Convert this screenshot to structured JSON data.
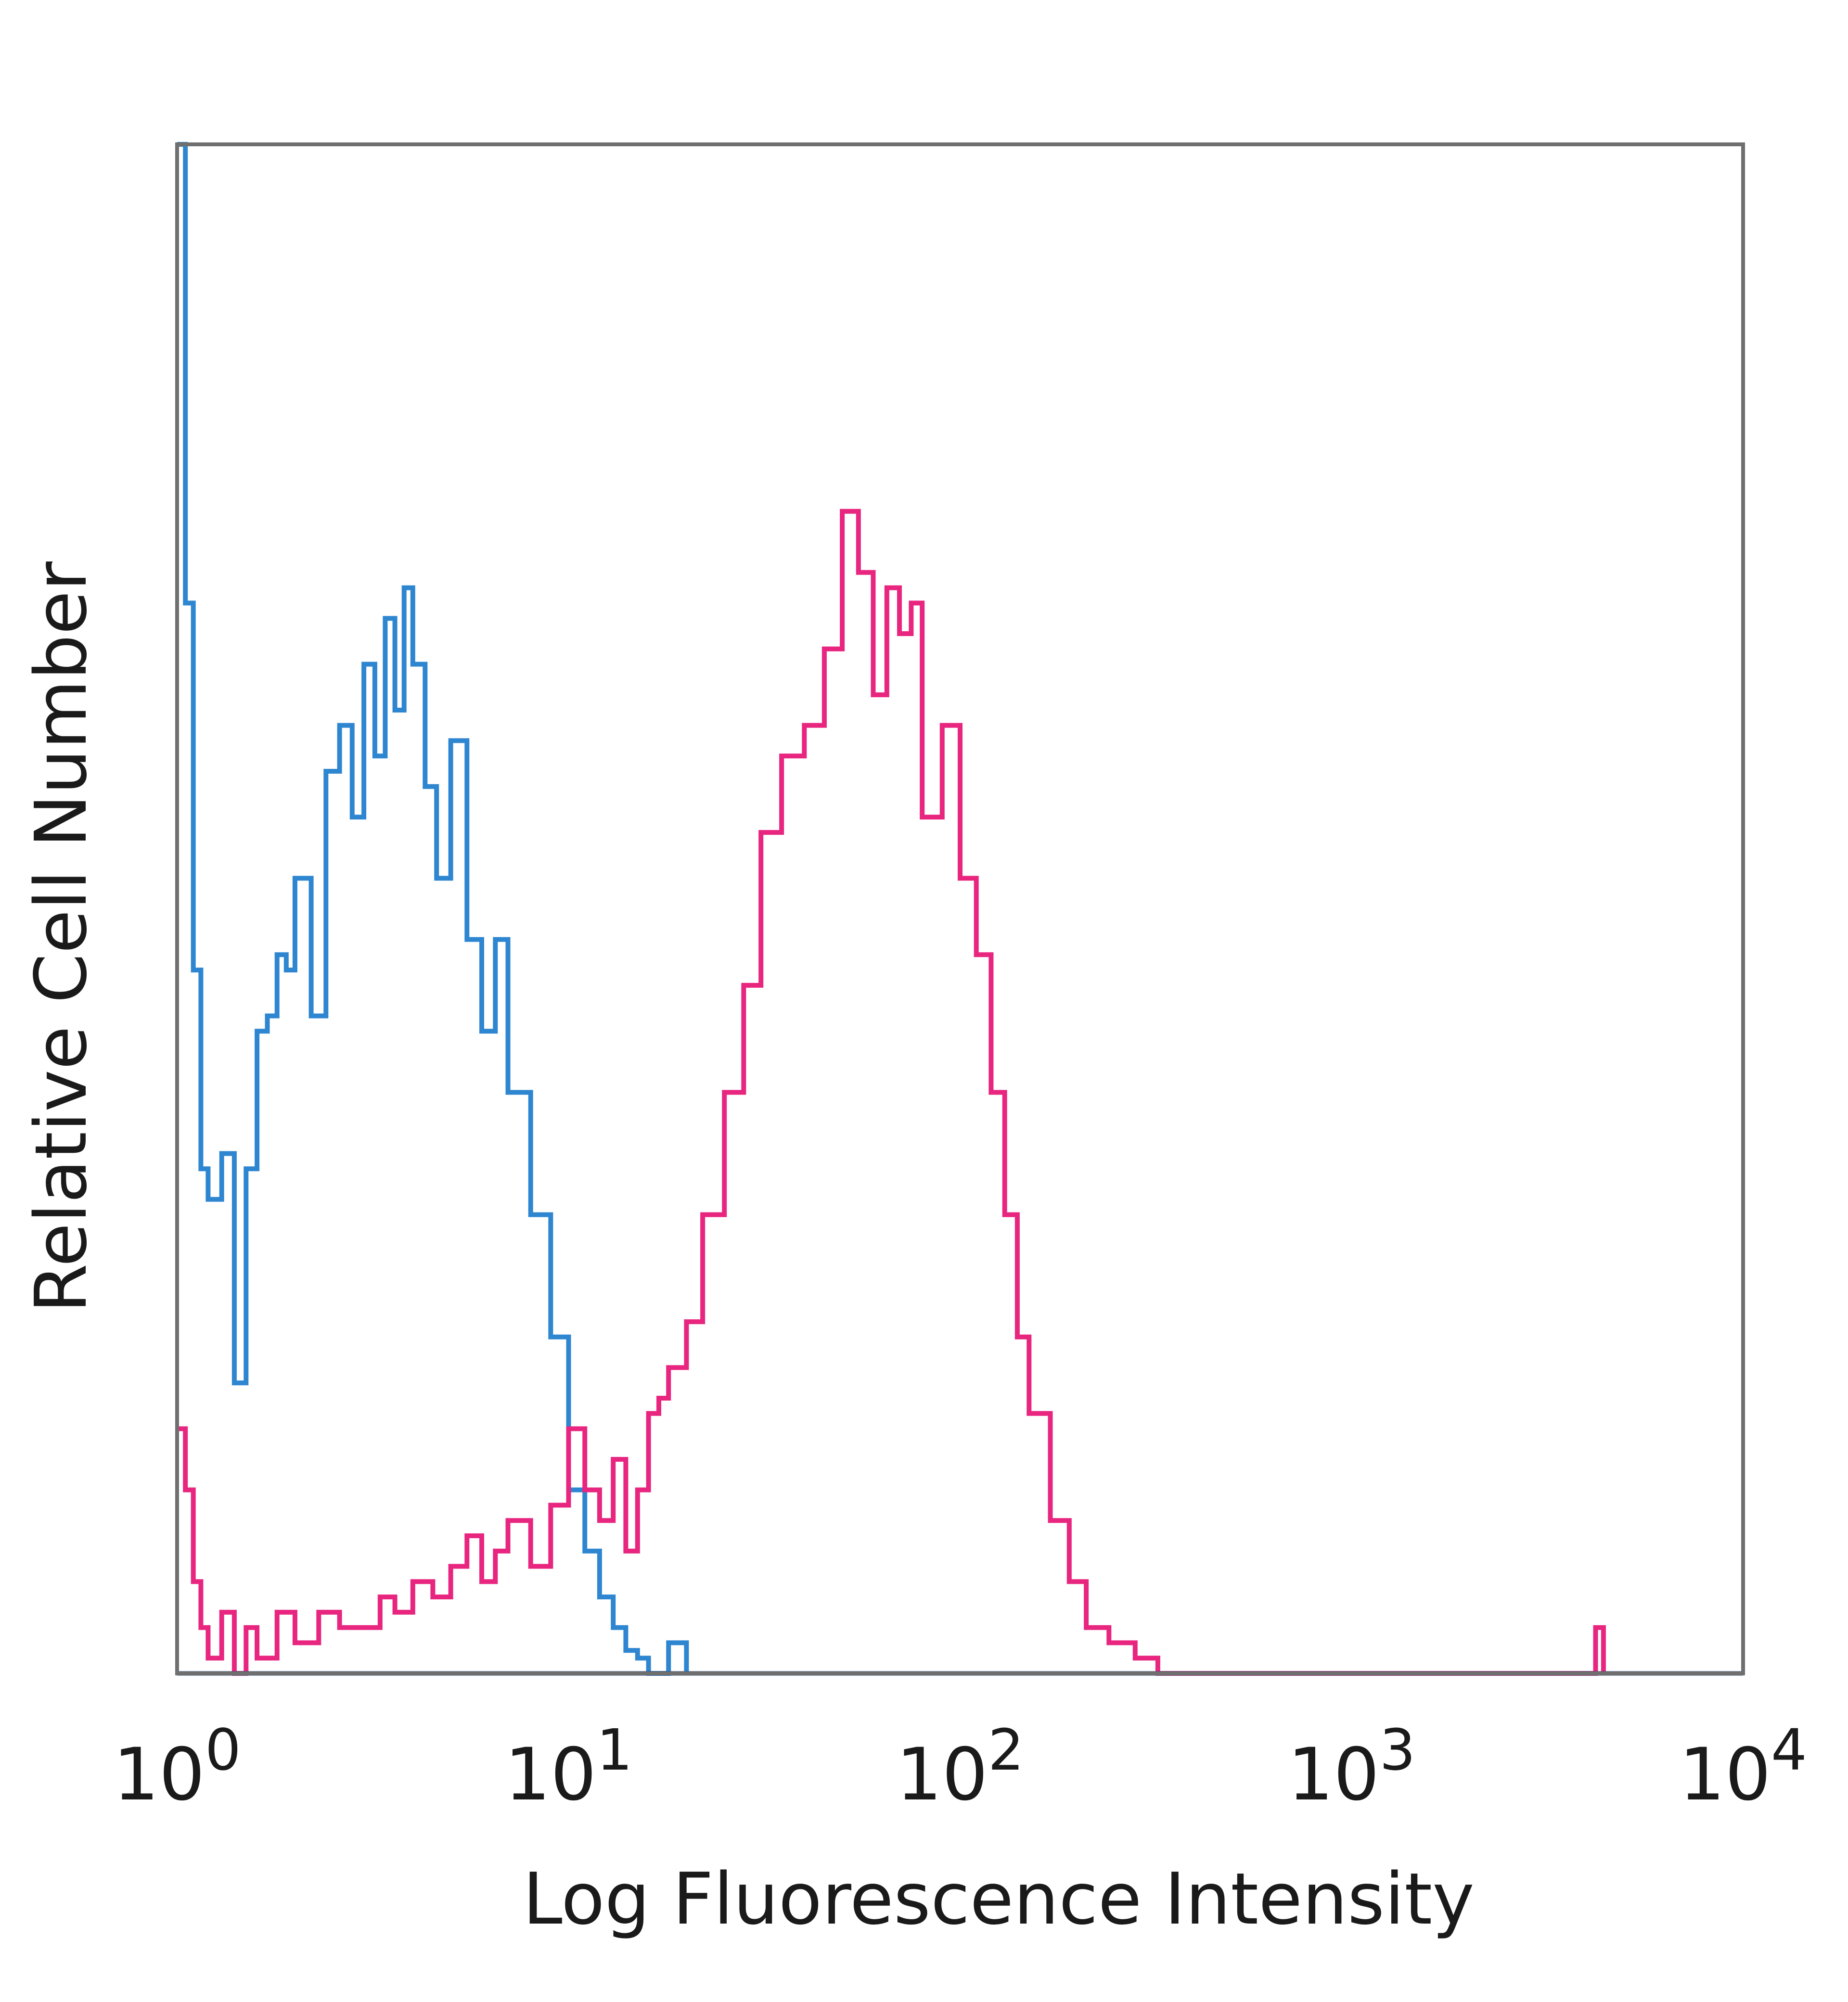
{
  "chart_data": {
    "type": "line",
    "title": "",
    "xlabel": "Log Fluorescence Intensity",
    "ylabel": "Relative Cell Number",
    "x_scale": "log",
    "xlim": [
      1,
      10000
    ],
    "ylim": [
      0,
      1
    ],
    "grid": false,
    "legend": "none",
    "x_ticks": [
      {
        "value": 1,
        "base": "10",
        "exp": "0"
      },
      {
        "value": 10,
        "base": "10",
        "exp": "1"
      },
      {
        "value": 100,
        "base": "10",
        "exp": "2"
      },
      {
        "value": 1000,
        "base": "10",
        "exp": "3"
      },
      {
        "value": 10000,
        "base": "10",
        "exp": "4"
      }
    ],
    "series": [
      {
        "color": "#2e86d1",
        "x": [
          1.0,
          1.05,
          1.1,
          1.15,
          1.2,
          1.3,
          1.4,
          1.5,
          1.6,
          1.7,
          1.8,
          1.9,
          2.0,
          2.2,
          2.4,
          2.6,
          2.8,
          3.0,
          3.2,
          3.4,
          3.6,
          3.8,
          4.0,
          4.3,
          4.6,
          5.0,
          5.5,
          6.0,
          6.5,
          7.0,
          8.0,
          9.0,
          10.0,
          11.0,
          12.0,
          13.0,
          14.0,
          15.0,
          16.0,
          17.0,
          18.0,
          20.0
        ],
        "y": [
          1.0,
          0.7,
          0.46,
          0.33,
          0.31,
          0.34,
          0.19,
          0.33,
          0.42,
          0.43,
          0.47,
          0.46,
          0.52,
          0.43,
          0.59,
          0.62,
          0.56,
          0.66,
          0.6,
          0.69,
          0.63,
          0.71,
          0.66,
          0.58,
          0.52,
          0.61,
          0.48,
          0.42,
          0.48,
          0.38,
          0.3,
          0.22,
          0.12,
          0.08,
          0.05,
          0.03,
          0.015,
          0.01,
          0.0,
          0.0,
          0.02,
          0.0
        ]
      },
      {
        "color": "#e8257f",
        "x": [
          1.0,
          1.05,
          1.1,
          1.15,
          1.2,
          1.3,
          1.4,
          1.5,
          1.6,
          1.8,
          2.0,
          2.3,
          2.6,
          3.0,
          3.3,
          3.6,
          4.0,
          4.5,
          5.0,
          5.5,
          6.0,
          6.5,
          7.0,
          8.0,
          9.0,
          10.0,
          11.0,
          12.0,
          13.0,
          14.0,
          15.0,
          16.0,
          17.0,
          18.0,
          20.0,
          22.0,
          25.0,
          28.0,
          31.0,
          35.0,
          40.0,
          45.0,
          50.0,
          55.0,
          60.0,
          65.0,
          70.0,
          75.0,
          80.0,
          90.0,
          100.0,
          110.0,
          120.0,
          130.0,
          140.0,
          150.0,
          170.0,
          190.0,
          210.0,
          240.0,
          280.0,
          320.0,
          4000.0,
          4200.0,
          4400.0
        ],
        "y": [
          0.16,
          0.12,
          0.06,
          0.03,
          0.01,
          0.04,
          0.0,
          0.03,
          0.01,
          0.04,
          0.02,
          0.04,
          0.03,
          0.03,
          0.05,
          0.04,
          0.06,
          0.05,
          0.07,
          0.09,
          0.06,
          0.08,
          0.1,
          0.07,
          0.11,
          0.16,
          0.12,
          0.1,
          0.14,
          0.08,
          0.12,
          0.17,
          0.18,
          0.2,
          0.23,
          0.3,
          0.38,
          0.45,
          0.55,
          0.6,
          0.62,
          0.67,
          0.76,
          0.72,
          0.64,
          0.71,
          0.68,
          0.7,
          0.56,
          0.62,
          0.52,
          0.47,
          0.38,
          0.3,
          0.22,
          0.17,
          0.1,
          0.06,
          0.03,
          0.02,
          0.01,
          0.0,
          0.0,
          0.03,
          0.0
        ]
      }
    ]
  }
}
